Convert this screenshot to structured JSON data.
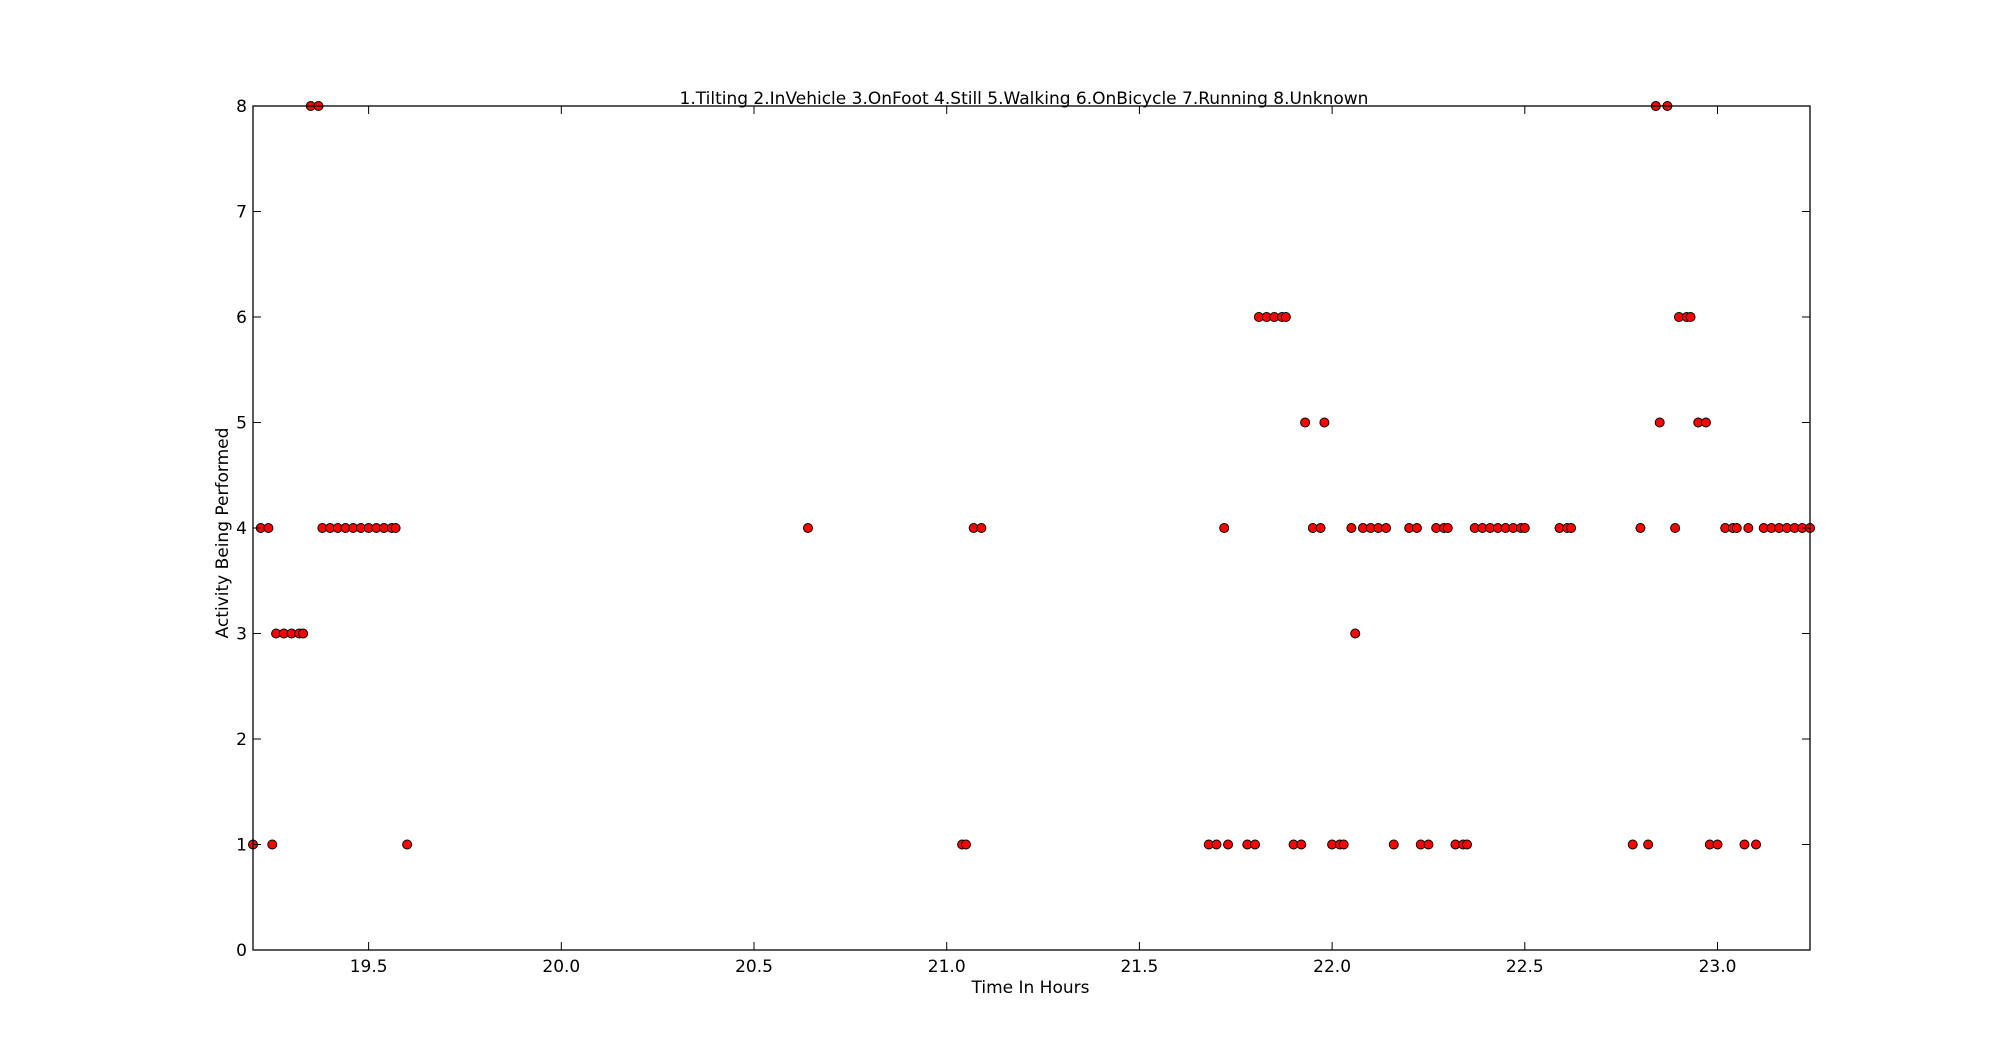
{
  "chart_data": {
    "type": "scatter",
    "title": "1.Tilting 2.InVehicle 3.OnFoot 4.Still 5.Walking 6.OnBicycle 7.Running 8.Unknown",
    "xlabel": "Time In Hours",
    "ylabel": "Activity Being Performed",
    "xlim": [
      19.2,
      23.24
    ],
    "ylim": [
      0,
      8
    ],
    "xticks": [
      "19.5",
      "20.0",
      "20.5",
      "21.0",
      "21.5",
      "22.0",
      "22.5",
      "23.0"
    ],
    "xtick_values": [
      19.5,
      20.0,
      20.5,
      21.0,
      21.5,
      22.0,
      22.5,
      23.0
    ],
    "yticks": [
      "0",
      "1",
      "2",
      "3",
      "4",
      "5",
      "6",
      "7",
      "8"
    ],
    "ytick_values": [
      0,
      1,
      2,
      3,
      4,
      5,
      6,
      7,
      8
    ],
    "grid": false,
    "marker_color": "#ff0000",
    "marker_edge_color": "#000000",
    "points": [
      [
        19.2,
        1
      ],
      [
        19.22,
        4
      ],
      [
        19.24,
        4
      ],
      [
        19.25,
        1
      ],
      [
        19.26,
        3
      ],
      [
        19.28,
        3
      ],
      [
        19.3,
        3
      ],
      [
        19.32,
        3
      ],
      [
        19.33,
        3
      ],
      [
        19.35,
        8
      ],
      [
        19.37,
        8
      ],
      [
        19.38,
        4
      ],
      [
        19.4,
        4
      ],
      [
        19.42,
        4
      ],
      [
        19.44,
        4
      ],
      [
        19.46,
        4
      ],
      [
        19.48,
        4
      ],
      [
        19.5,
        4
      ],
      [
        19.52,
        4
      ],
      [
        19.54,
        4
      ],
      [
        19.56,
        4
      ],
      [
        19.57,
        4
      ],
      [
        19.6,
        1
      ],
      [
        20.64,
        4
      ],
      [
        21.04,
        1
      ],
      [
        21.05,
        1
      ],
      [
        21.07,
        4
      ],
      [
        21.09,
        4
      ],
      [
        21.68,
        1
      ],
      [
        21.7,
        1
      ],
      [
        21.72,
        4
      ],
      [
        21.73,
        1
      ],
      [
        21.78,
        1
      ],
      [
        21.8,
        1
      ],
      [
        21.81,
        6
      ],
      [
        21.83,
        6
      ],
      [
        21.85,
        6
      ],
      [
        21.87,
        6
      ],
      [
        21.88,
        6
      ],
      [
        21.9,
        1
      ],
      [
        21.92,
        1
      ],
      [
        21.93,
        5
      ],
      [
        21.95,
        4
      ],
      [
        21.97,
        4
      ],
      [
        21.98,
        5
      ],
      [
        22.0,
        1
      ],
      [
        22.02,
        1
      ],
      [
        22.03,
        1
      ],
      [
        22.05,
        4
      ],
      [
        22.06,
        3
      ],
      [
        22.08,
        4
      ],
      [
        22.1,
        4
      ],
      [
        22.12,
        4
      ],
      [
        22.14,
        4
      ],
      [
        22.16,
        1
      ],
      [
        22.2,
        4
      ],
      [
        22.22,
        4
      ],
      [
        22.23,
        1
      ],
      [
        22.25,
        1
      ],
      [
        22.27,
        4
      ],
      [
        22.29,
        4
      ],
      [
        22.3,
        4
      ],
      [
        22.32,
        1
      ],
      [
        22.34,
        1
      ],
      [
        22.35,
        1
      ],
      [
        22.37,
        4
      ],
      [
        22.39,
        4
      ],
      [
        22.41,
        4
      ],
      [
        22.43,
        4
      ],
      [
        22.45,
        4
      ],
      [
        22.47,
        4
      ],
      [
        22.49,
        4
      ],
      [
        22.5,
        4
      ],
      [
        22.59,
        4
      ],
      [
        22.61,
        4
      ],
      [
        22.62,
        4
      ],
      [
        22.78,
        1
      ],
      [
        22.8,
        4
      ],
      [
        22.82,
        1
      ],
      [
        22.84,
        8
      ],
      [
        22.85,
        5
      ],
      [
        22.87,
        8
      ],
      [
        22.89,
        4
      ],
      [
        22.9,
        6
      ],
      [
        22.92,
        6
      ],
      [
        22.93,
        6
      ],
      [
        22.95,
        5
      ],
      [
        22.97,
        5
      ],
      [
        22.98,
        1
      ],
      [
        23.0,
        1
      ],
      [
        23.02,
        4
      ],
      [
        23.04,
        4
      ],
      [
        23.05,
        4
      ],
      [
        23.07,
        1
      ],
      [
        23.08,
        4
      ],
      [
        23.1,
        1
      ],
      [
        23.12,
        4
      ],
      [
        23.14,
        4
      ],
      [
        23.16,
        4
      ],
      [
        23.18,
        4
      ],
      [
        23.2,
        4
      ],
      [
        23.22,
        4
      ],
      [
        23.24,
        4
      ]
    ]
  }
}
